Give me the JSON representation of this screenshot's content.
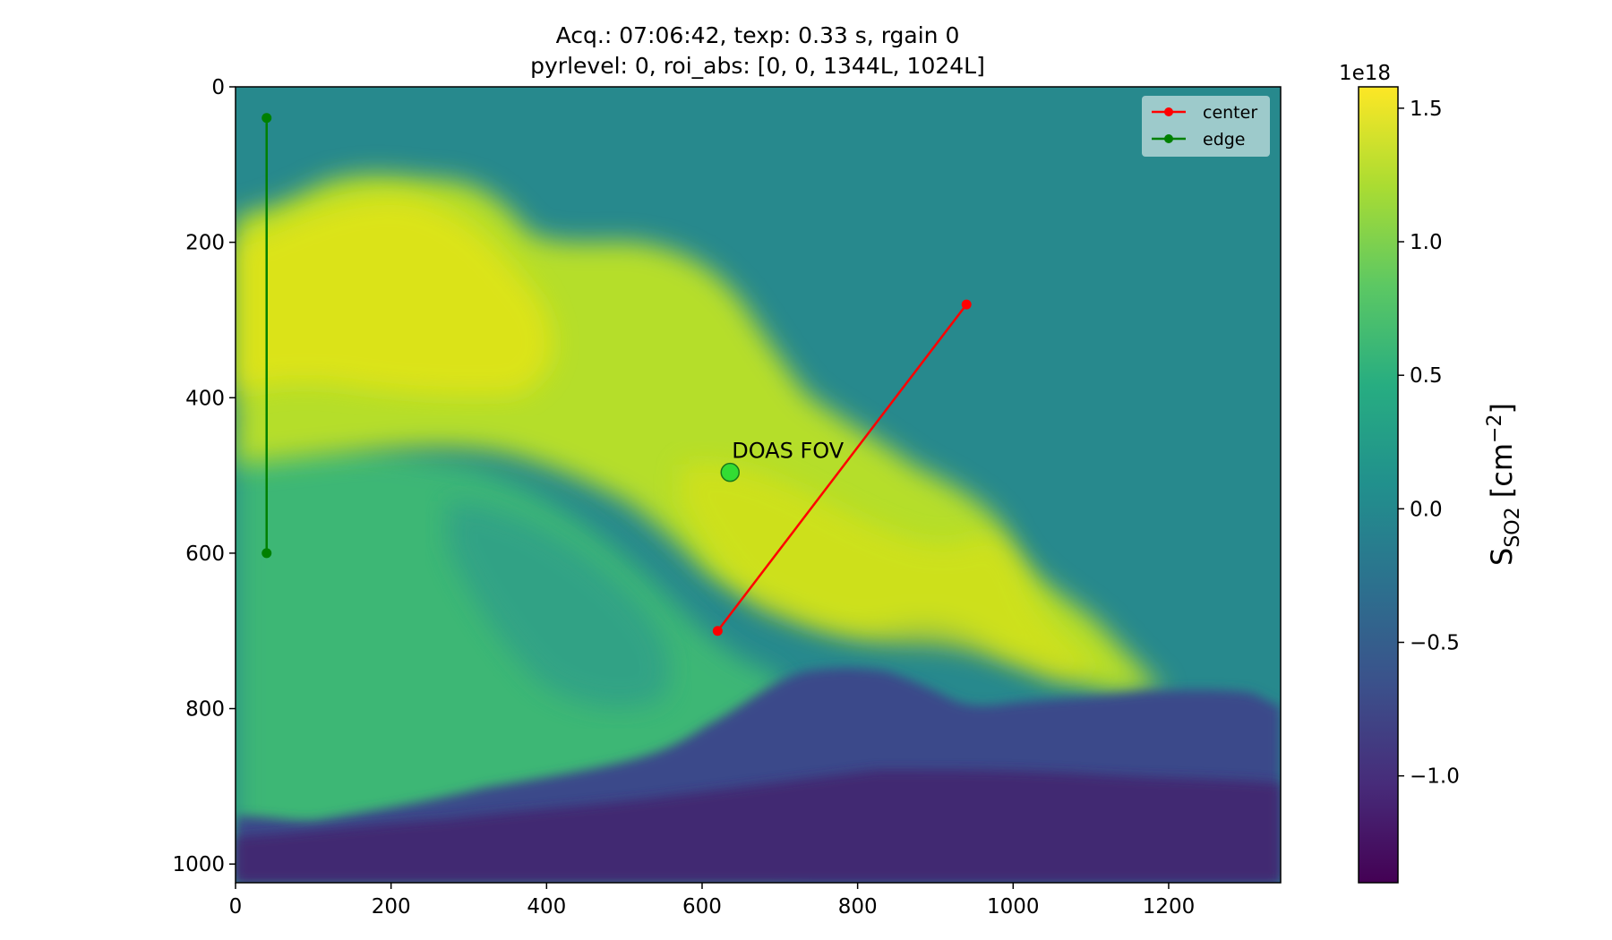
{
  "chart_data": {
    "type": "heatmap",
    "title_line1": "Acq.: 07:06:42, texp: 0.33 s, rgain 0",
    "title_line2": "pyrlevel: 0, roi_abs: [0, 0, 1344L, 1024L]",
    "image_size": {
      "width": 1344,
      "height": 1024
    },
    "xlim": [
      0,
      1344
    ],
    "ylim": [
      1024,
      0
    ],
    "xticks": [
      0,
      200,
      400,
      600,
      800,
      1000,
      1200
    ],
    "yticks": [
      0,
      200,
      400,
      600,
      800,
      1000
    ],
    "colormap": "viridis",
    "colorbar": {
      "label": "S",
      "label_sub": "SO2",
      "label_units": " [cm",
      "label_exp": "−2",
      "label_close": "]",
      "offset_text": "1e18",
      "ticks": [
        1.5,
        1.0,
        0.5,
        0.0,
        -0.5,
        -1.0
      ],
      "tick_labels": [
        "1.5",
        "1.0",
        "0.5",
        "0.0",
        "−0.5",
        "−1.0"
      ],
      "vmin": -1.4,
      "vmax": 1.58
    },
    "lines": [
      {
        "name": "center",
        "color": "#ff0000",
        "points": [
          [
            620,
            700
          ],
          [
            940,
            280
          ]
        ]
      },
      {
        "name": "edge",
        "color": "#008000",
        "points": [
          [
            40,
            40
          ],
          [
            40,
            600
          ]
        ]
      }
    ],
    "annotation": {
      "text": "DOAS FOV",
      "x": 636,
      "y": 496,
      "marker_color": "#33dd33"
    },
    "legend": {
      "position": "top-right",
      "entries": [
        "center",
        "edge"
      ]
    },
    "regions": {
      "background_value": 0.0,
      "plume_core_value": 1.4,
      "plume_lower_value": 0.8,
      "terrain_value": -1.2
    }
  }
}
